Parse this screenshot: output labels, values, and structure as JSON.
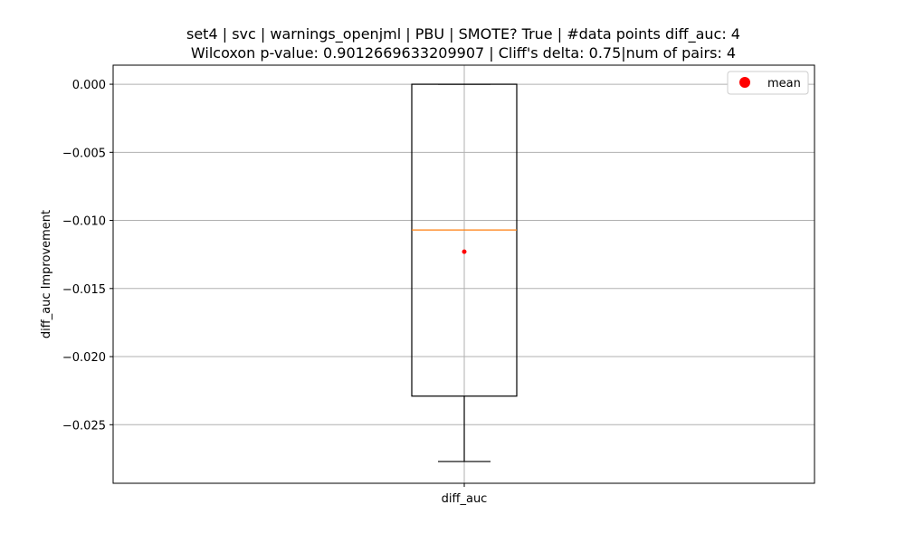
{
  "chart_data": {
    "type": "box",
    "title_line1": "set4 | svc | warnings_openjml | PBU | SMOTE? True | #data points diff_auc: 4",
    "title_line2": "Wilcoxon p-value: 0.9012669633209907 | Cliff's delta: 0.75|num of pairs: 4",
    "ylabel": "diff_auc Improvement",
    "categories": [
      "diff_auc"
    ],
    "box": {
      "whisker_low": -0.0277,
      "q1": -0.0229,
      "median": -0.0107,
      "q3": 0.0,
      "whisker_high": 0.0,
      "mean": -0.0123
    },
    "ylim": [
      -0.0293,
      0.0014
    ],
    "yticks": [
      0.0,
      -0.005,
      -0.01,
      -0.015,
      -0.02,
      -0.025
    ],
    "ytick_labels": [
      "0.000",
      "−0.005",
      "−0.010",
      "−0.015",
      "−0.020",
      "−0.025"
    ],
    "grid": true,
    "legend": {
      "position": "top-right",
      "label": "mean"
    },
    "colors": {
      "box": "#000000",
      "median": "#ff7f0e",
      "mean": "#ff0000",
      "grid": "#b0b0b0"
    }
  }
}
